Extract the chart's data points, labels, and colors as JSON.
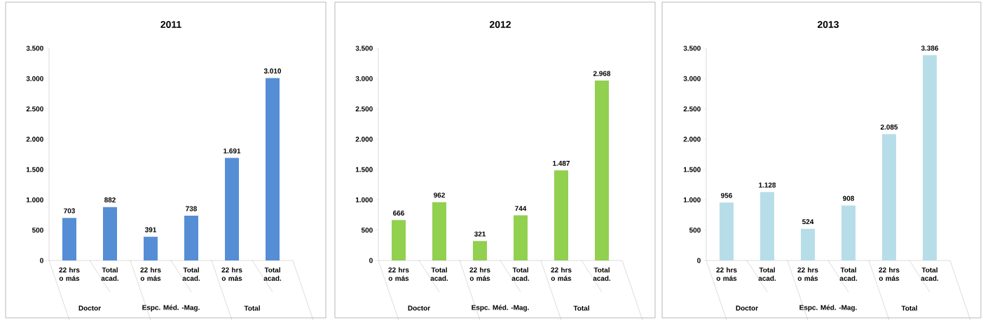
{
  "chart_data": [
    {
      "type": "bar",
      "title": "2011",
      "categories": [
        "22 hrs o más",
        "Total acad.",
        "22 hrs o más",
        "Total acad.",
        "22 hrs o más",
        "Total acad."
      ],
      "values": [
        703,
        882,
        391,
        738,
        1691,
        3010
      ],
      "value_labels": [
        "703",
        "882",
        "391",
        "738",
        "1.691",
        "3.010"
      ],
      "color": "#558ed5",
      "ylim": [
        0,
        3500
      ],
      "yticks": [
        0,
        {
          "value": 500,
          "label": "500"
        },
        {
          "value": 1000,
          "label": "1.000"
        },
        {
          "value": 1500,
          "label": "1.500"
        },
        {
          "value": 2000,
          "label": "2.000"
        },
        {
          "value": 2500,
          "label": "2.500"
        },
        {
          "value": 3000,
          "label": "3.000"
        },
        {
          "value": 3500,
          "label": "3.500"
        }
      ],
      "annotations": [
        "Doctor",
        "Espc. Méd. -Mag.",
        "Total"
      ]
    },
    {
      "type": "bar",
      "title": "2012",
      "categories": [
        "22 hrs o más",
        "Total acad.",
        "22 hrs o más",
        "Total acad.",
        "22 hrs o más",
        "Total acad."
      ],
      "values": [
        666,
        962,
        321,
        744,
        1487,
        2968
      ],
      "value_labels": [
        "666",
        "962",
        "321",
        "744",
        "1.487",
        "2.968"
      ],
      "color": "#92d050",
      "ylim": [
        0,
        3500
      ],
      "yticks": [
        0,
        {
          "value": 500,
          "label": "500"
        },
        {
          "value": 1000,
          "label": "1.000"
        },
        {
          "value": 1500,
          "label": "1.500"
        },
        {
          "value": 2000,
          "label": "2.000"
        },
        {
          "value": 2500,
          "label": "2.500"
        },
        {
          "value": 3000,
          "label": "3.000"
        },
        {
          "value": 3500,
          "label": "3.500"
        }
      ],
      "annotations": [
        "Doctor",
        "Espc. Méd. -Mag.",
        "Total"
      ]
    },
    {
      "type": "bar",
      "title": "2013",
      "categories": [
        "22 hrs o más",
        "Total acad.",
        "22 hrs o más",
        "Total acad.",
        "22 hrs o más",
        "Total acad."
      ],
      "values": [
        956,
        1128,
        524,
        908,
        2085,
        3386
      ],
      "value_labels": [
        "956",
        "1.128",
        "524",
        "908",
        "2.085",
        "3.386"
      ],
      "color": "#b7dee8",
      "ylim": [
        0,
        3500
      ],
      "yticks": [
        0,
        {
          "value": 500,
          "label": "500"
        },
        {
          "value": 1000,
          "label": "1.000"
        },
        {
          "value": 1500,
          "label": "1.500"
        },
        {
          "value": 2000,
          "label": "2.000"
        },
        {
          "value": 2500,
          "label": "2.500"
        },
        {
          "value": 3000,
          "label": "3.000"
        },
        {
          "value": 3500,
          "label": "3.500"
        }
      ],
      "annotations": [
        "Doctor",
        "Espc. Méd. -Mag.",
        "Total"
      ]
    }
  ]
}
